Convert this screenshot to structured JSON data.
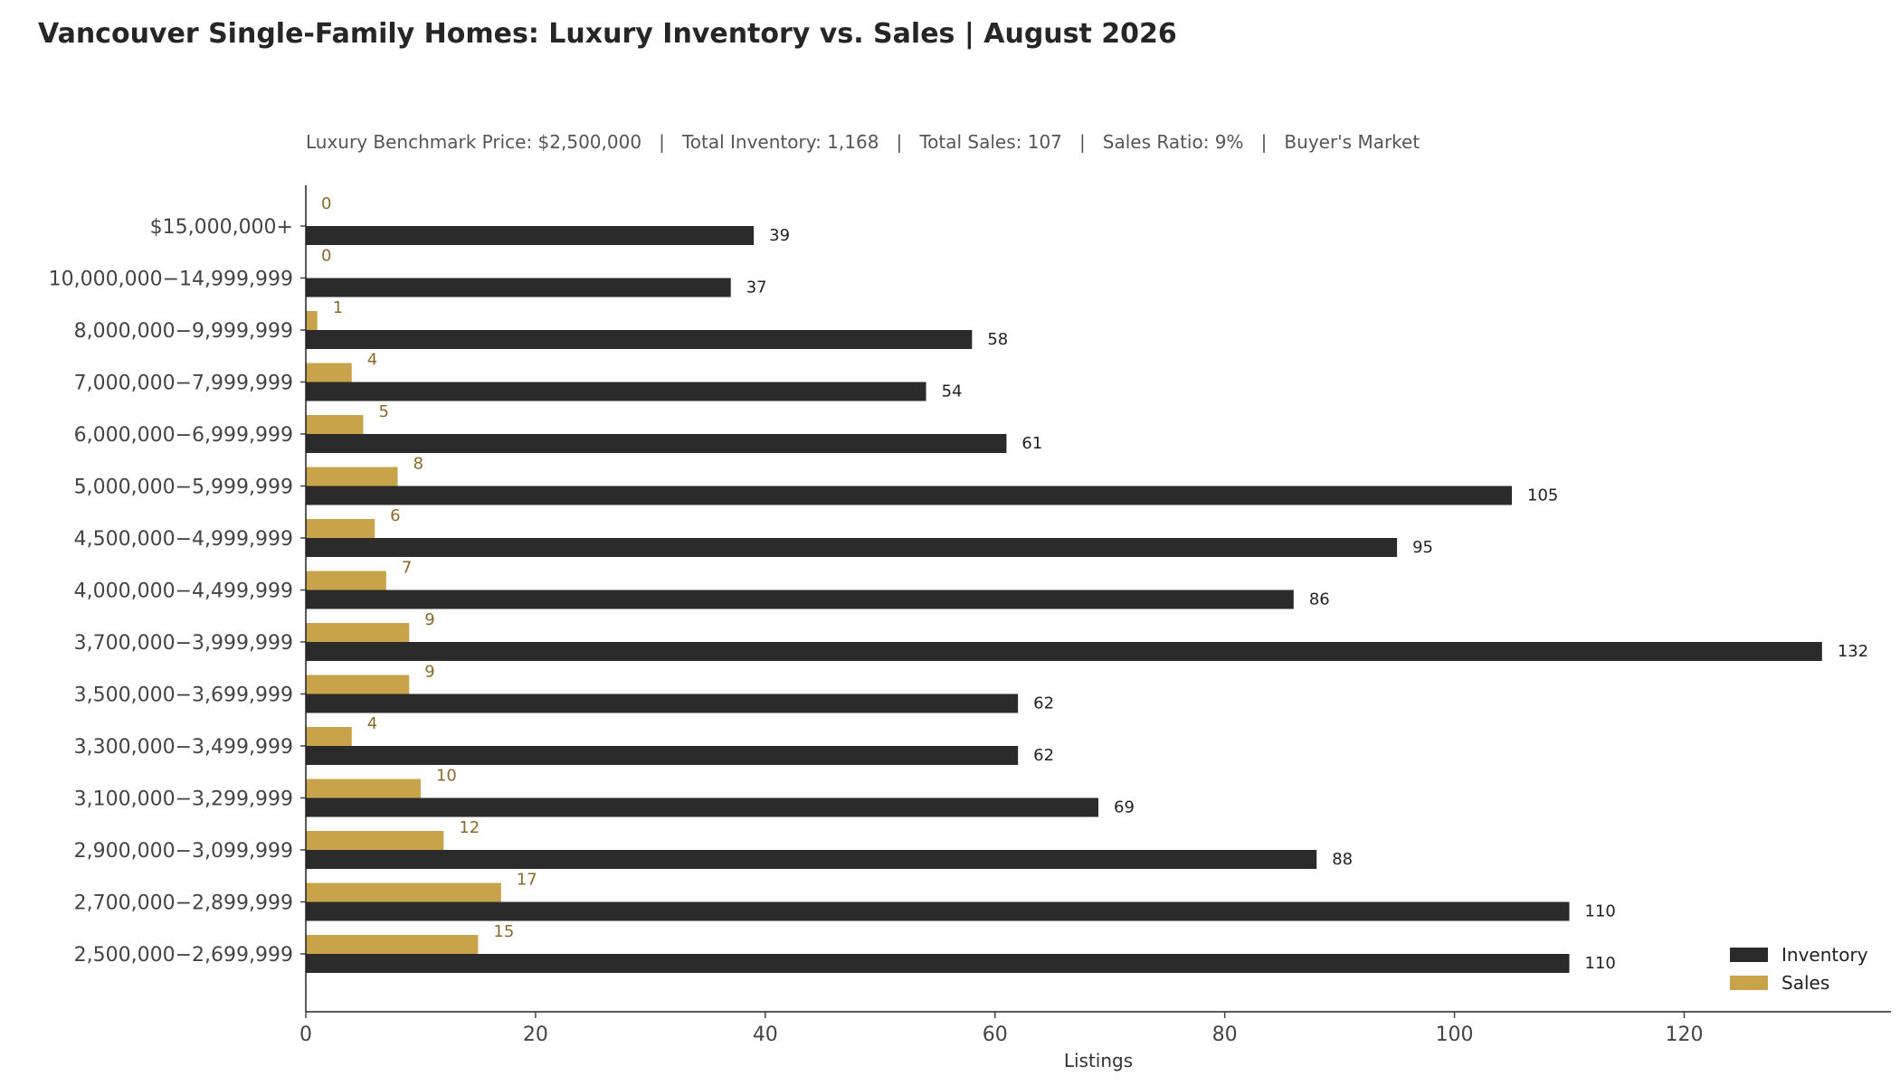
{
  "chart_data": {
    "type": "bar",
    "orientation": "horizontal",
    "title": "Vancouver Single-Family Homes: Luxury Inventory vs. Sales | August 2026",
    "subtitle": "Luxury Benchmark Price: $2,500,000   |   Total Inventory: 1,168   |   Total Sales: 107   |   Sales Ratio: 9%   |   Buyer's Market",
    "xlabel": "Listings",
    "xlim": [
      0,
      138
    ],
    "xticks": [
      0,
      20,
      40,
      60,
      80,
      100,
      120
    ],
    "grid": false,
    "legend_position": "bottom-right",
    "categories": [
      "$15,000,000+",
      "10,000,000−14,999,999",
      "8,000,000−9,999,999",
      "7,000,000−7,999,999",
      "6,000,000−6,999,999",
      "5,000,000−5,999,999",
      "4,500,000−4,999,999",
      "4,000,000−4,499,999",
      "3,700,000−3,999,999",
      "3,500,000−3,699,999",
      "3,300,000−3,499,999",
      "3,100,000−3,299,999",
      "2,900,000−3,099,999",
      "2,700,000−2,899,999",
      "2,500,000−2,699,999"
    ],
    "series": [
      {
        "name": "Inventory",
        "color": "#2b2b2b",
        "label_color": "#222222",
        "values": [
          39,
          37,
          58,
          54,
          61,
          105,
          95,
          86,
          132,
          62,
          62,
          69,
          88,
          110,
          110
        ]
      },
      {
        "name": "Sales",
        "color": "#c9a349",
        "label_color": "#8a6a2a",
        "values": [
          0,
          0,
          1,
          4,
          5,
          8,
          6,
          7,
          9,
          9,
          4,
          10,
          12,
          17,
          15
        ]
      }
    ]
  }
}
